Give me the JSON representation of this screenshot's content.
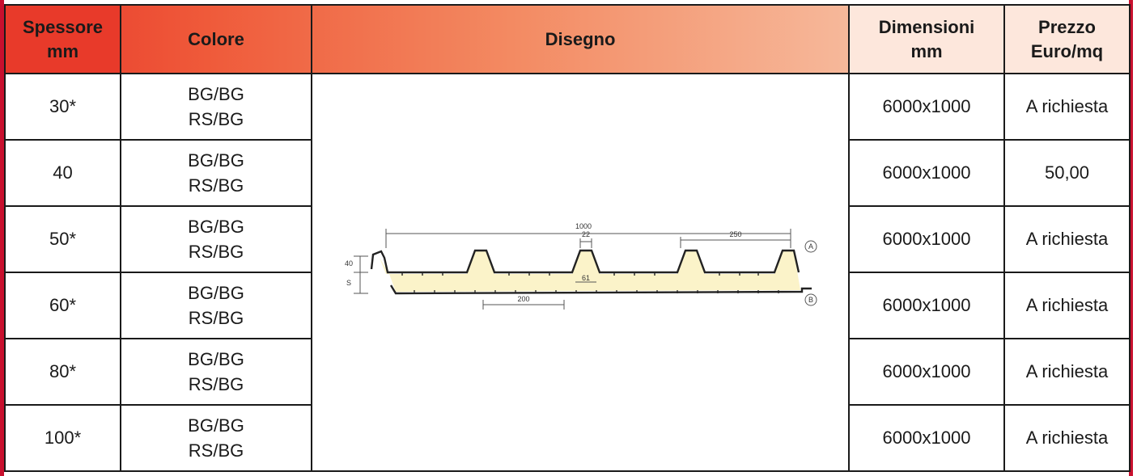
{
  "headers": {
    "spessore_l1": "Spessore",
    "spessore_l2": "mm",
    "colore": "Colore",
    "disegno": "Disegno",
    "dimensioni_l1": "Dimensioni",
    "dimensioni_l2": "mm",
    "prezzo_l1": "Prezzo",
    "prezzo_l2": "Euro/mq"
  },
  "rows": [
    {
      "spessore": "30*",
      "colore_1": "BG/BG",
      "colore_2": "RS/BG",
      "dimensioni": "6000x1000",
      "prezzo": "A richiesta"
    },
    {
      "spessore": "40",
      "colore_1": "BG/BG",
      "colore_2": "RS/BG",
      "dimensioni": "6000x1000",
      "prezzo": "50,00"
    },
    {
      "spessore": "50*",
      "colore_1": "BG/BG",
      "colore_2": "RS/BG",
      "dimensioni": "6000x1000",
      "prezzo": "A richiesta"
    },
    {
      "spessore": "60*",
      "colore_1": "BG/BG",
      "colore_2": "RS/BG",
      "dimensioni": "6000x1000",
      "prezzo": "A richiesta"
    },
    {
      "spessore": "80*",
      "colore_1": "BG/BG",
      "colore_2": "RS/BG",
      "dimensioni": "6000x1000",
      "prezzo": "A richiesta"
    },
    {
      "spessore": "100*",
      "colore_1": "BG/BG",
      "colore_2": "RS/BG",
      "dimensioni": "6000x1000",
      "prezzo": "A richiesta"
    }
  ],
  "drawing": {
    "dim_total": "1000",
    "dim_rib_top": "22",
    "dim_rib_pitch": "250",
    "dim_height": "40",
    "dim_s": "S",
    "dim_rib_base": "61",
    "dim_bottom": "200",
    "label_a": "A",
    "label_b": "B"
  },
  "colors": {
    "frame_red": "#c8102e",
    "header_text": "#1f2e5a",
    "foam_fill": "#fbf3c9"
  }
}
